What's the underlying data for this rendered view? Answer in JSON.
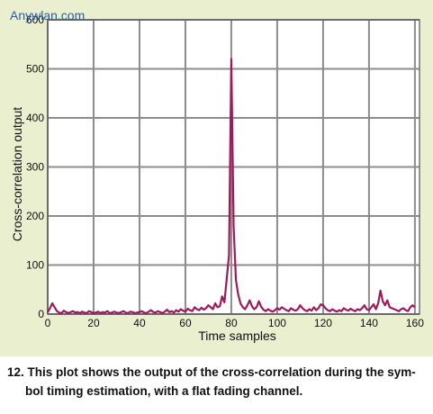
{
  "watermark": "Anywlan.com",
  "caption": {
    "line1": "12. This plot shows the output of the cross-correlation during the sym-",
    "line2": "bol timing estimation, with a flat fading channel."
  },
  "colors": {
    "background": "#e9efcf",
    "plot_area": "#ffffff",
    "grid": "#8c8c8c",
    "series": "#a0195a"
  },
  "chart_data": {
    "type": "line",
    "title": "",
    "xlabel": "Time samples",
    "ylabel": "Cross-correlation output",
    "xlim": [
      0,
      162
    ],
    "ylim": [
      0,
      600
    ],
    "xticks": [
      0,
      20,
      40,
      60,
      80,
      100,
      120,
      140,
      160
    ],
    "yticks": [
      0,
      100,
      200,
      300,
      400,
      500,
      600
    ],
    "grid": true,
    "series": [
      {
        "x": [
          0,
          1,
          2,
          3,
          4,
          5,
          6,
          7,
          8,
          9,
          10,
          11,
          12,
          13,
          14,
          15,
          16,
          17,
          18,
          19,
          20,
          21,
          22,
          23,
          24,
          25,
          26,
          27,
          28,
          29,
          30,
          31,
          32,
          33,
          34,
          35,
          36,
          37,
          38,
          39,
          40,
          41,
          42,
          43,
          44,
          45,
          46,
          47,
          48,
          49,
          50,
          51,
          52,
          53,
          54,
          55,
          56,
          57,
          58,
          59,
          60,
          61,
          62,
          63,
          64,
          65,
          66,
          67,
          68,
          69,
          70,
          71,
          72,
          73,
          74,
          75,
          76,
          77,
          78,
          79,
          80,
          81,
          82,
          83,
          84,
          85,
          86,
          87,
          88,
          89,
          90,
          91,
          92,
          93,
          94,
          95,
          96,
          97,
          98,
          99,
          100,
          101,
          102,
          103,
          104,
          105,
          106,
          107,
          108,
          109,
          110,
          111,
          112,
          113,
          114,
          115,
          116,
          117,
          118,
          119,
          120,
          121,
          122,
          123,
          124,
          125,
          126,
          127,
          128,
          129,
          130,
          131,
          132,
          133,
          134,
          135,
          136,
          137,
          138,
          139,
          140,
          141,
          142,
          143,
          144,
          145,
          146,
          147,
          148,
          149,
          150,
          151,
          152,
          153,
          154,
          155,
          156,
          157,
          158,
          159,
          160
        ],
        "values": [
          4,
          12,
          22,
          14,
          6,
          3,
          2,
          7,
          4,
          2,
          4,
          6,
          3,
          4,
          2,
          5,
          3,
          2,
          6,
          4,
          2,
          3,
          5,
          2,
          4,
          3,
          6,
          2,
          3,
          5,
          3,
          2,
          4,
          6,
          3,
          2,
          5,
          4,
          2,
          3,
          4,
          6,
          3,
          2,
          5,
          8,
          4,
          3,
          6,
          4,
          2,
          5,
          9,
          4,
          6,
          3,
          8,
          5,
          10,
          7,
          5,
          11,
          8,
          6,
          14,
          10,
          8,
          13,
          9,
          12,
          18,
          14,
          10,
          22,
          14,
          16,
          36,
          24,
          72,
          120,
          520,
          180,
          70,
          40,
          22,
          14,
          10,
          18,
          28,
          16,
          10,
          14,
          26,
          15,
          9,
          6,
          10,
          7,
          5,
          8,
          12,
          9,
          14,
          11,
          8,
          6,
          12,
          9,
          7,
          10,
          18,
          12,
          8,
          6,
          10,
          7,
          14,
          8,
          12,
          20,
          18,
          12,
          8,
          6,
          10,
          7,
          5,
          8,
          6,
          12,
          9,
          7,
          11,
          8,
          6,
          10,
          8,
          12,
          18,
          10,
          8,
          14,
          20,
          10,
          22,
          48,
          26,
          18,
          28,
          14,
          12,
          10,
          8,
          6,
          10,
          12,
          8,
          6,
          14,
          18,
          14
        ]
      }
    ]
  }
}
